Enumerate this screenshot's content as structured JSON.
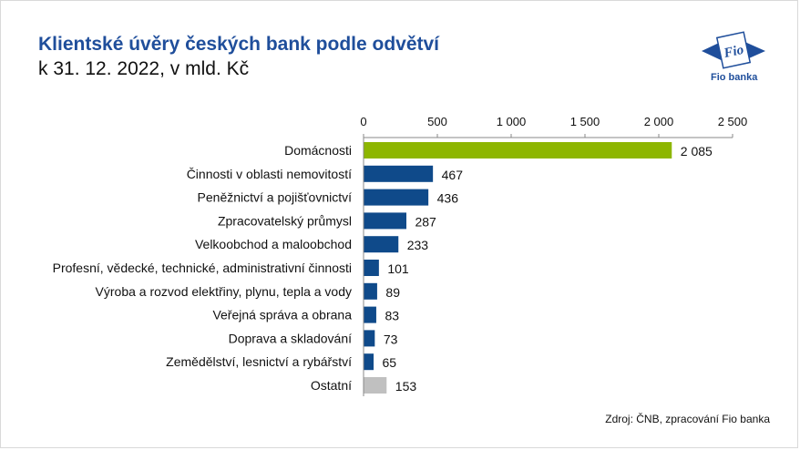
{
  "header": {
    "title": "Klientské úvěry českých bank podle odvětví",
    "subtitle": "k 31. 12. 2022, v mld. Kč"
  },
  "logo": {
    "mark_text": "Fio",
    "label": "Fio banka",
    "color": "#1f4e9b"
  },
  "footer": {
    "source": "Zdroj: ČNB, zpracování Fio banka"
  },
  "chart_data": {
    "type": "bar",
    "orientation": "horizontal",
    "categories": [
      "Domácnosti",
      "Činnosti v oblasti nemovitostí",
      "Peněžnictví a pojišťovnictví",
      "Zpracovatelský průmysl",
      "Velkoobchod a maloobchod",
      "Profesní, vědecké, technické, administrativní činnosti",
      "Výroba a rozvod elektřiny, plynu, tepla a vody",
      "Veřejná správa a obrana",
      "Doprava a skladování",
      "Zemědělství, lesnictví a rybářství",
      "Ostatní"
    ],
    "values": [
      2085,
      467,
      436,
      287,
      233,
      101,
      89,
      83,
      73,
      65,
      153
    ],
    "value_labels": [
      "2 085",
      "467",
      "436",
      "287",
      "233",
      "101",
      "89",
      "83",
      "73",
      "65",
      "153"
    ],
    "colors": [
      "#8db600",
      "#0f4a8a",
      "#0f4a8a",
      "#0f4a8a",
      "#0f4a8a",
      "#0f4a8a",
      "#0f4a8a",
      "#0f4a8a",
      "#0f4a8a",
      "#0f4a8a",
      "#c0c0c0"
    ],
    "xlim": [
      0,
      2500
    ],
    "xticks": [
      0,
      500,
      1000,
      1500,
      2000,
      2500
    ],
    "xtick_labels": [
      "0",
      "500",
      "1 000",
      "1 500",
      "2 000",
      "2 500"
    ],
    "axis_position": "top",
    "grid": false,
    "legend": "none"
  }
}
